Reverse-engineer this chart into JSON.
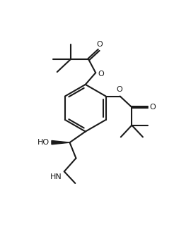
{
  "bg_color": "#ffffff",
  "line_color": "#1a1a1a",
  "bond_lw": 1.5,
  "figsize": [
    2.46,
    3.22
  ],
  "dpi": 100,
  "xlim": [
    -0.5,
    10.5
  ],
  "ylim": [
    -1.0,
    11.5
  ]
}
